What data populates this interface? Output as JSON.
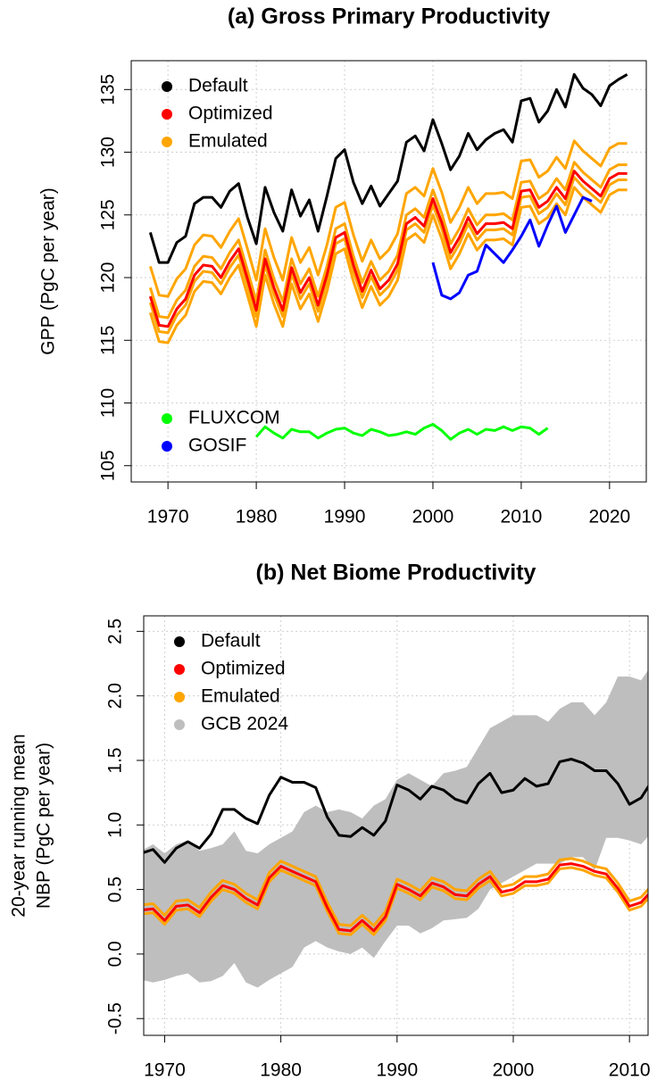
{
  "chart_data": [
    {
      "type": "line",
      "title": "(a) Gross Primary Productivity",
      "ylabel": [
        "GPP (PgC per year)"
      ],
      "x": [
        1968,
        1969,
        1970,
        1971,
        1972,
        1973,
        1974,
        1975,
        1976,
        1977,
        1978,
        1979,
        1980,
        1981,
        1982,
        1983,
        1984,
        1985,
        1986,
        1987,
        1988,
        1989,
        1990,
        1991,
        1992,
        1993,
        1994,
        1995,
        1996,
        1997,
        1998,
        1999,
        2000,
        2001,
        2002,
        2003,
        2004,
        2005,
        2006,
        2007,
        2008,
        2009,
        2010,
        2011,
        2012,
        2013,
        2014,
        2015,
        2016,
        2017,
        2018,
        2019,
        2020,
        2021,
        2022
      ],
      "xlim": [
        1965.84,
        2024.16
      ],
      "xticks": [
        1970,
        1980,
        1990,
        2000,
        2010,
        2020
      ],
      "ylim": [
        103.7,
        137.3
      ],
      "yticks": [
        105,
        110,
        115,
        120,
        125,
        130,
        135
      ],
      "grid": true,
      "series": [
        {
          "name": "Default",
          "color": "#000000",
          "legend": "top-left",
          "values": [
            123.6,
            121.2,
            121.2,
            122.8,
            123.3,
            125.9,
            126.4,
            126.4,
            125.6,
            126.9,
            127.5,
            124.8,
            122.7,
            127.2,
            125.2,
            123.7,
            127.0,
            124.9,
            126.2,
            123.7,
            126.5,
            129.5,
            130.2,
            127.6,
            125.9,
            127.3,
            125.7,
            126.7,
            127.7,
            130.8,
            131.3,
            130.1,
            132.6,
            130.7,
            128.6,
            129.7,
            131.5,
            130.2,
            131.0,
            131.5,
            131.8,
            130.8,
            134.1,
            134.3,
            132.4,
            133.3,
            135.0,
            133.6,
            136.2,
            135.1,
            134.6,
            133.7,
            135.3,
            135.8,
            136.2
          ]
        },
        {
          "name": "Optimized",
          "color": "#ff0000",
          "legend": "top-left",
          "values": [
            118.5,
            116.2,
            116.1,
            117.5,
            118.3,
            120.2,
            121.0,
            120.9,
            120.0,
            121.3,
            122.3,
            119.9,
            117.4,
            121.5,
            119.2,
            117.4,
            120.8,
            118.8,
            120.0,
            117.8,
            120.2,
            123.2,
            123.6,
            121.0,
            118.9,
            120.6,
            119.1,
            119.8,
            121.1,
            124.3,
            124.8,
            124.1,
            126.3,
            124.4,
            122.0,
            123.2,
            124.8,
            123.5,
            124.3,
            124.3,
            124.4,
            123.9,
            126.9,
            127.0,
            125.6,
            126.1,
            127.2,
            126.3,
            128.5,
            127.7,
            127.1,
            126.5,
            127.9,
            128.3,
            128.3
          ]
        },
        {
          "name": "Emulated",
          "color": "#ffa500",
          "legend": "top-left",
          "ensemble": [
            [
              120.9,
              118.6,
              118.5,
              119.9,
              120.7,
              122.6,
              123.4,
              123.3,
              122.4,
              123.7,
              124.7,
              122.3,
              119.8,
              123.9,
              121.6,
              119.8,
              123.2,
              121.2,
              122.4,
              120.2,
              122.6,
              125.6,
              126.0,
              123.4,
              121.3,
              123.0,
              121.5,
              122.2,
              123.5,
              126.7,
              127.2,
              126.5,
              128.7,
              126.8,
              124.4,
              125.6,
              127.2,
              125.9,
              126.7,
              126.7,
              126.8,
              126.3,
              129.3,
              129.4,
              128.0,
              128.5,
              129.6,
              128.7,
              130.9,
              130.1,
              129.5,
              128.9,
              130.3,
              130.7,
              130.7
            ],
            [
              119.2,
              116.9,
              116.8,
              118.2,
              119.0,
              120.9,
              121.7,
              121.6,
              120.7,
              122.0,
              123.0,
              120.6,
              118.1,
              122.2,
              119.9,
              118.1,
              121.5,
              119.5,
              120.7,
              118.5,
              120.9,
              123.9,
              124.3,
              121.7,
              119.6,
              121.3,
              119.8,
              120.5,
              121.8,
              125.0,
              125.5,
              124.8,
              127.0,
              125.1,
              122.7,
              123.9,
              125.5,
              124.2,
              125.0,
              125.0,
              125.1,
              124.6,
              127.6,
              127.7,
              126.3,
              126.8,
              127.9,
              127.0,
              129.2,
              128.4,
              127.8,
              127.2,
              128.6,
              129.0,
              129.0
            ],
            [
              118.0,
              115.7,
              115.6,
              117.0,
              117.8,
              119.7,
              120.5,
              120.4,
              119.5,
              120.8,
              121.8,
              119.4,
              116.9,
              121.0,
              118.7,
              116.9,
              120.3,
              118.3,
              119.5,
              117.3,
              119.7,
              122.7,
              123.1,
              120.5,
              118.4,
              120.1,
              118.6,
              119.3,
              120.6,
              123.8,
              124.3,
              123.6,
              125.8,
              123.9,
              121.5,
              122.7,
              124.3,
              123.0,
              123.8,
              123.8,
              123.9,
              123.4,
              126.4,
              126.5,
              125.1,
              125.6,
              126.7,
              125.8,
              128.0,
              127.2,
              126.6,
              126.0,
              127.4,
              127.8,
              127.8
            ],
            [
              117.2,
              114.9,
              114.8,
              116.2,
              117.0,
              118.9,
              119.7,
              119.6,
              118.7,
              120.0,
              121.0,
              118.6,
              116.1,
              120.2,
              117.9,
              116.1,
              119.5,
              117.5,
              118.7,
              116.5,
              118.9,
              121.9,
              122.3,
              119.7,
              117.6,
              119.3,
              117.8,
              118.5,
              119.8,
              123.0,
              123.5,
              122.8,
              125.0,
              123.1,
              120.7,
              121.9,
              123.5,
              122.2,
              123.0,
              123.0,
              123.1,
              122.6,
              125.6,
              125.7,
              124.3,
              124.8,
              125.9,
              125.0,
              127.2,
              126.4,
              125.8,
              125.2,
              126.6,
              127.0,
              127.0
            ]
          ]
        },
        {
          "name": "FLUXCOM",
          "color": "#00ff00",
          "legend": "bottom-left",
          "values": [
            null,
            null,
            null,
            null,
            null,
            null,
            null,
            null,
            null,
            null,
            null,
            null,
            107.3,
            108.1,
            107.6,
            107.2,
            107.9,
            107.7,
            107.7,
            107.2,
            107.6,
            107.9,
            108.0,
            107.6,
            107.4,
            107.9,
            107.7,
            107.4,
            107.5,
            107.7,
            107.5,
            108.0,
            108.3,
            107.8,
            107.1,
            107.6,
            107.9,
            107.5,
            107.9,
            107.8,
            108.1,
            107.8,
            108.1,
            108.0,
            107.5,
            108.0,
            null,
            null,
            null,
            null,
            null,
            null,
            null,
            null,
            null
          ]
        },
        {
          "name": "GOSIF",
          "color": "#0000ff",
          "legend": "bottom-left",
          "values": [
            null,
            null,
            null,
            null,
            null,
            null,
            null,
            null,
            null,
            null,
            null,
            null,
            null,
            null,
            null,
            null,
            null,
            null,
            null,
            null,
            null,
            null,
            null,
            null,
            null,
            null,
            null,
            null,
            null,
            null,
            null,
            null,
            121.2,
            118.6,
            118.3,
            118.8,
            120.2,
            120.5,
            122.6,
            121.9,
            121.2,
            122.2,
            123.3,
            124.6,
            122.5,
            124.2,
            125.7,
            123.6,
            125.0,
            126.4,
            126.1,
            null,
            null,
            null,
            null
          ]
        }
      ]
    },
    {
      "type": "line",
      "title": "(b) Net Biome Productivity",
      "ylabel": [
        "20-year running mean",
        "NBP (PgC per year)"
      ],
      "x": [
        1968,
        1969,
        1970,
        1971,
        1972,
        1973,
        1974,
        1975,
        1976,
        1977,
        1978,
        1979,
        1980,
        1981,
        1982,
        1983,
        1984,
        1985,
        1986,
        1987,
        1988,
        1989,
        1990,
        1991,
        1992,
        1993,
        1994,
        1995,
        1996,
        1997,
        1998,
        1999,
        2000,
        2001,
        2002,
        2003,
        2004,
        2005,
        2006,
        2007,
        2008,
        2009,
        2010,
        2011,
        2012
      ],
      "xlim": [
        1968.2,
        2011.6
      ],
      "xticks": [
        1970,
        1980,
        1990,
        2000,
        2010
      ],
      "ylim": [
        -0.63,
        2.62
      ],
      "yticks": [
        -0.5,
        {
          "value": 0,
          "label": "0.0"
        },
        0.5,
        {
          "value": 1,
          "label": "1.0"
        },
        1.5,
        {
          "value": 2,
          "label": "2.0"
        },
        2.5
      ],
      "grid": true,
      "series": [
        {
          "name": "Default",
          "color": "#000000",
          "legend": "top-left",
          "values": [
            0.78,
            0.81,
            0.71,
            0.82,
            0.87,
            0.82,
            0.93,
            1.12,
            1.12,
            1.05,
            1.01,
            1.23,
            1.37,
            1.33,
            1.33,
            1.29,
            1.06,
            0.92,
            0.91,
            0.98,
            0.92,
            1.03,
            1.31,
            1.27,
            1.2,
            1.3,
            1.27,
            1.2,
            1.17,
            1.32,
            1.4,
            1.25,
            1.27,
            1.36,
            1.3,
            1.32,
            1.49,
            1.51,
            1.48,
            1.42,
            1.42,
            1.32,
            1.16,
            1.21,
            1.35
          ]
        },
        {
          "name": "Optimized",
          "color": "#ff0000",
          "legend": "top-left",
          "values": [
            0.34,
            0.35,
            0.26,
            0.37,
            0.38,
            0.32,
            0.44,
            0.53,
            0.5,
            0.43,
            0.38,
            0.59,
            0.68,
            0.64,
            0.6,
            0.56,
            0.36,
            0.19,
            0.18,
            0.26,
            0.18,
            0.29,
            0.54,
            0.5,
            0.45,
            0.55,
            0.52,
            0.46,
            0.45,
            0.54,
            0.6,
            0.48,
            0.5,
            0.56,
            0.56,
            0.58,
            0.69,
            0.7,
            0.68,
            0.64,
            0.62,
            0.51,
            0.37,
            0.4,
            0.5
          ]
        },
        {
          "name": "Emulated",
          "color": "#ffa500",
          "legend": "top-left",
          "ensemble": [
            [
              0.38,
              0.39,
              0.3,
              0.41,
              0.42,
              0.36,
              0.48,
              0.57,
              0.54,
              0.47,
              0.42,
              0.63,
              0.72,
              0.68,
              0.64,
              0.6,
              0.4,
              0.23,
              0.22,
              0.3,
              0.22,
              0.33,
              0.58,
              0.54,
              0.49,
              0.59,
              0.56,
              0.5,
              0.49,
              0.58,
              0.64,
              0.52,
              0.54,
              0.6,
              0.6,
              0.62,
              0.73,
              0.74,
              0.72,
              0.68,
              0.66,
              0.55,
              0.41,
              0.44,
              0.54
            ],
            [
              0.31,
              0.32,
              0.23,
              0.34,
              0.35,
              0.29,
              0.41,
              0.5,
              0.47,
              0.4,
              0.35,
              0.56,
              0.65,
              0.61,
              0.57,
              0.53,
              0.33,
              0.16,
              0.15,
              0.23,
              0.15,
              0.26,
              0.51,
              0.47,
              0.42,
              0.52,
              0.49,
              0.43,
              0.42,
              0.51,
              0.57,
              0.45,
              0.47,
              0.53,
              0.53,
              0.55,
              0.66,
              0.67,
              0.65,
              0.61,
              0.59,
              0.48,
              0.34,
              0.37,
              0.47
            ]
          ]
        },
        {
          "name": "GCB 2024",
          "color": "#bebebe",
          "legend": "top-left",
          "upper": [
            0.8,
            0.85,
            0.78,
            0.85,
            0.88,
            0.8,
            0.82,
            0.85,
            0.95,
            0.8,
            0.78,
            0.85,
            0.9,
            0.95,
            1.1,
            1.15,
            1.1,
            1.12,
            1.1,
            1.05,
            1.15,
            1.2,
            1.35,
            1.4,
            1.35,
            1.3,
            1.4,
            1.42,
            1.45,
            1.6,
            1.75,
            1.8,
            1.85,
            1.85,
            1.85,
            1.8,
            1.9,
            1.95,
            1.95,
            1.85,
            1.95,
            2.15,
            2.15,
            2.12,
            2.25
          ],
          "lower": [
            -0.2,
            -0.22,
            -0.2,
            -0.17,
            -0.15,
            -0.22,
            -0.21,
            -0.17,
            -0.07,
            -0.22,
            -0.26,
            -0.2,
            -0.15,
            -0.1,
            0.05,
            0.1,
            0.05,
            0.02,
            0.0,
            0.05,
            -0.03,
            0.1,
            0.22,
            0.22,
            0.16,
            0.2,
            0.26,
            0.27,
            0.28,
            0.35,
            0.5,
            0.55,
            0.6,
            0.65,
            0.7,
            0.7,
            0.7,
            0.75,
            0.75,
            0.65,
            0.9,
            0.9,
            0.88,
            0.85,
            0.95
          ]
        }
      ]
    }
  ]
}
